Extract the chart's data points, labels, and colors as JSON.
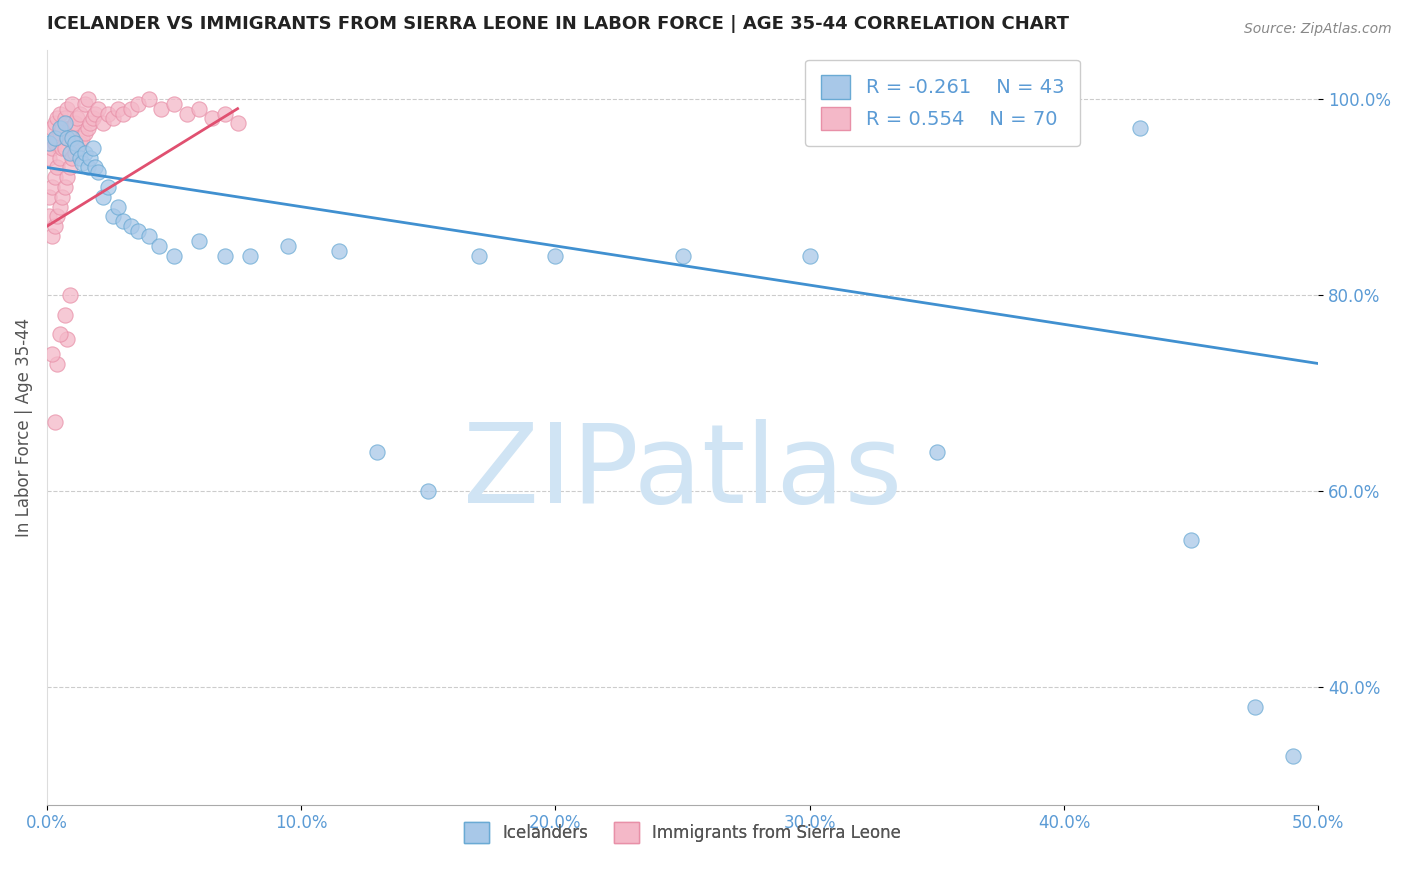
{
  "title": "ICELANDER VS IMMIGRANTS FROM SIERRA LEONE IN LABOR FORCE | AGE 35-44 CORRELATION CHART",
  "source": "Source: ZipAtlas.com",
  "ylabel": "In Labor Force | Age 35-44",
  "xlim": [
    0.0,
    0.5
  ],
  "ylim": [
    0.28,
    1.05
  ],
  "xticks": [
    0.0,
    0.1,
    0.2,
    0.3,
    0.4,
    0.5
  ],
  "ytick_vals": [
    0.4,
    0.6,
    0.8,
    1.0
  ],
  "legend_blue_R": -0.261,
  "legend_blue_N": 43,
  "legend_pink_R": 0.554,
  "legend_pink_N": 70,
  "blue_scatter_x": [
    0.001,
    0.003,
    0.005,
    0.007,
    0.008,
    0.009,
    0.01,
    0.011,
    0.012,
    0.013,
    0.014,
    0.015,
    0.016,
    0.017,
    0.018,
    0.019,
    0.02,
    0.022,
    0.024,
    0.026,
    0.028,
    0.03,
    0.033,
    0.036,
    0.04,
    0.044,
    0.05,
    0.06,
    0.07,
    0.08,
    0.095,
    0.115,
    0.13,
    0.15,
    0.17,
    0.2,
    0.25,
    0.3,
    0.35,
    0.43,
    0.45,
    0.475,
    0.49
  ],
  "blue_scatter_y": [
    0.955,
    0.96,
    0.97,
    0.975,
    0.96,
    0.945,
    0.96,
    0.955,
    0.95,
    0.94,
    0.935,
    0.945,
    0.93,
    0.94,
    0.95,
    0.93,
    0.925,
    0.9,
    0.91,
    0.88,
    0.89,
    0.875,
    0.87,
    0.865,
    0.86,
    0.85,
    0.84,
    0.855,
    0.84,
    0.84,
    0.85,
    0.845,
    0.64,
    0.6,
    0.84,
    0.84,
    0.84,
    0.84,
    0.64,
    0.97,
    0.55,
    0.38,
    0.33
  ],
  "pink_scatter_x": [
    0.001,
    0.001,
    0.001,
    0.002,
    0.002,
    0.002,
    0.002,
    0.003,
    0.003,
    0.003,
    0.003,
    0.004,
    0.004,
    0.004,
    0.004,
    0.005,
    0.005,
    0.005,
    0.005,
    0.006,
    0.006,
    0.006,
    0.007,
    0.007,
    0.007,
    0.008,
    0.008,
    0.008,
    0.009,
    0.009,
    0.01,
    0.01,
    0.01,
    0.011,
    0.011,
    0.012,
    0.012,
    0.013,
    0.013,
    0.014,
    0.015,
    0.015,
    0.016,
    0.016,
    0.017,
    0.018,
    0.019,
    0.02,
    0.022,
    0.024,
    0.026,
    0.028,
    0.03,
    0.033,
    0.036,
    0.04,
    0.045,
    0.05,
    0.055,
    0.06,
    0.065,
    0.07,
    0.075,
    0.008,
    0.004,
    0.003,
    0.002,
    0.005,
    0.007,
    0.009
  ],
  "pink_scatter_y": [
    0.88,
    0.9,
    0.94,
    0.86,
    0.91,
    0.95,
    0.97,
    0.87,
    0.92,
    0.955,
    0.975,
    0.88,
    0.93,
    0.96,
    0.98,
    0.89,
    0.94,
    0.965,
    0.985,
    0.9,
    0.95,
    0.97,
    0.91,
    0.95,
    0.98,
    0.92,
    0.96,
    0.99,
    0.93,
    0.97,
    0.94,
    0.97,
    0.995,
    0.945,
    0.975,
    0.95,
    0.98,
    0.955,
    0.985,
    0.96,
    0.965,
    0.995,
    0.97,
    1.0,
    0.975,
    0.98,
    0.985,
    0.99,
    0.975,
    0.985,
    0.98,
    0.99,
    0.985,
    0.99,
    0.995,
    1.0,
    0.99,
    0.995,
    0.985,
    0.99,
    0.98,
    0.985,
    0.975,
    0.755,
    0.73,
    0.67,
    0.74,
    0.76,
    0.78,
    0.8
  ],
  "blue_trendline_x": [
    0.0,
    0.5
  ],
  "blue_trendline_y": [
    0.93,
    0.73
  ],
  "pink_trendline_x": [
    0.0,
    0.075
  ],
  "pink_trendline_y": [
    0.87,
    0.99
  ],
  "blue_dot_color": "#a8c8e8",
  "blue_edge_color": "#6aaad4",
  "pink_dot_color": "#f4b8c8",
  "pink_edge_color": "#e890a8",
  "blue_line_color": "#4090d0",
  "pink_line_color": "#e05070",
  "grid_color": "#cccccc",
  "background_color": "#ffffff",
  "watermark_text": "ZIPatlas",
  "watermark_color": "#d0e4f4",
  "title_color": "#222222",
  "axis_label_color": "#555555",
  "tick_color": "#5b9bd5",
  "source_color": "#888888"
}
